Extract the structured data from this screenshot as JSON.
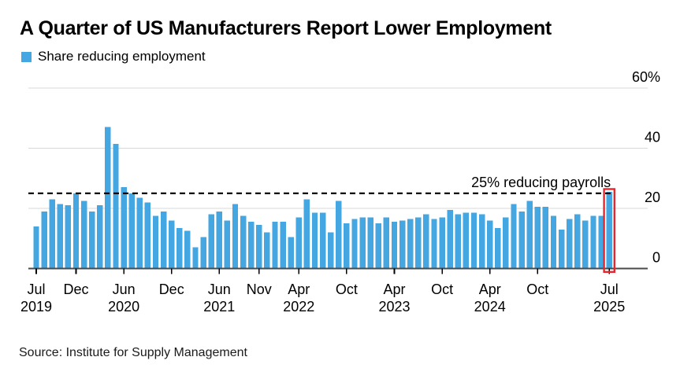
{
  "header": {
    "title": "A Quarter of US Manufacturers Report Lower Employment",
    "legend_label": "Share reducing employment"
  },
  "footer": {
    "source": "Source: Institute for Supply Management"
  },
  "colors": {
    "bar": "#45A7E2",
    "highlight_box": "#E3292F",
    "grid": "#D8D8D8",
    "axis_line": "#4A4A4A",
    "reference_line": "#000000",
    "text": "#000000"
  },
  "chart_data": {
    "type": "bar",
    "title": "A Quarter of US Manufacturers Report Lower Employment",
    "series_name": "Share reducing employment",
    "y_unit": "%",
    "ylim": [
      0,
      60
    ],
    "grid": "horizontal",
    "legend_position": "top-left",
    "categories": [
      "Jul 2019",
      "Aug 2019",
      "Sep 2019",
      "Oct 2019",
      "Nov 2019",
      "Dec 2019",
      "Jan 2020",
      "Feb 2020",
      "Mar 2020",
      "Apr 2020",
      "May 2020",
      "Jun 2020",
      "Jul 2020",
      "Aug 2020",
      "Sep 2020",
      "Oct 2020",
      "Nov 2020",
      "Dec 2020",
      "Jan 2021",
      "Feb 2021",
      "Mar 2021",
      "Apr 2021",
      "May 2021",
      "Jun 2021",
      "Jul 2021",
      "Aug 2021",
      "Sep 2021",
      "Oct 2021",
      "Nov 2021",
      "Dec 2021",
      "Jan 2022",
      "Feb 2022",
      "Mar 2022",
      "Apr 2022",
      "May 2022",
      "Jun 2022",
      "Jul 2022",
      "Aug 2022",
      "Sep 2022",
      "Oct 2022",
      "Nov 2022",
      "Dec 2022",
      "Jan 2023",
      "Feb 2023",
      "Mar 2023",
      "Apr 2023",
      "May 2023",
      "Jun 2023",
      "Jul 2023",
      "Aug 2023",
      "Sep 2023",
      "Oct 2023",
      "Nov 2023",
      "Dec 2023",
      "Jan 2024",
      "Feb 2024",
      "Mar 2024",
      "Apr 2024",
      "May 2024",
      "Jun 2024",
      "Jul 2024",
      "Aug 2024",
      "Sep 2024",
      "Oct 2024",
      "Nov 2024",
      "Dec 2024",
      "Jan 2025",
      "Feb 2025",
      "Mar 2025",
      "Apr 2025",
      "May 2025",
      "Jun 2025",
      "Jul 2025"
    ],
    "values": [
      14,
      19,
      23,
      21.5,
      21,
      25,
      22.5,
      19,
      21,
      47,
      41.5,
      27,
      25,
      23.5,
      22,
      17.5,
      19,
      16,
      13.5,
      12.5,
      7,
      10.5,
      18,
      19,
      16,
      21.5,
      17.5,
      15.5,
      14.5,
      12,
      15.5,
      15.5,
      10.5,
      17,
      23,
      18.5,
      18.5,
      12,
      22.5,
      15,
      16.5,
      17,
      17,
      15,
      17,
      15.5,
      16,
      16.5,
      17,
      18,
      16.5,
      17,
      19.5,
      18,
      18.5,
      18.5,
      18,
      16,
      13.5,
      17,
      21.5,
      19,
      22.5,
      20.5,
      20.5,
      17.5,
      13,
      16.5,
      18,
      16,
      17.5,
      17.5,
      25.5
    ],
    "yticks": [
      {
        "value": 60,
        "label": "60%"
      },
      {
        "value": 40,
        "label": "40"
      },
      {
        "value": 20,
        "label": "20"
      },
      {
        "value": 0,
        "label": "0"
      }
    ],
    "xticks": [
      {
        "index": 0,
        "line1": "Jul",
        "line2": "2019"
      },
      {
        "index": 5,
        "line1": "Dec",
        "line2": ""
      },
      {
        "index": 11,
        "line1": "Jun",
        "line2": "2020"
      },
      {
        "index": 17,
        "line1": "Dec",
        "line2": ""
      },
      {
        "index": 23,
        "line1": "Jun",
        "line2": "2021"
      },
      {
        "index": 28,
        "line1": "Nov",
        "line2": ""
      },
      {
        "index": 33,
        "line1": "Apr",
        "line2": "2022"
      },
      {
        "index": 39,
        "line1": "Oct",
        "line2": ""
      },
      {
        "index": 45,
        "line1": "Apr",
        "line2": "2023"
      },
      {
        "index": 51,
        "line1": "Oct",
        "line2": ""
      },
      {
        "index": 57,
        "line1": "Apr",
        "line2": "2024"
      },
      {
        "index": 63,
        "line1": "Oct",
        "line2": ""
      },
      {
        "index": 72,
        "line1": "Jul",
        "line2": "2025"
      }
    ],
    "reference_line": {
      "value": 25,
      "label": "25% reducing payrolls",
      "style": "dashed"
    },
    "highlight": {
      "index": 72,
      "category": "Jul 2025",
      "style": "red-box"
    }
  }
}
